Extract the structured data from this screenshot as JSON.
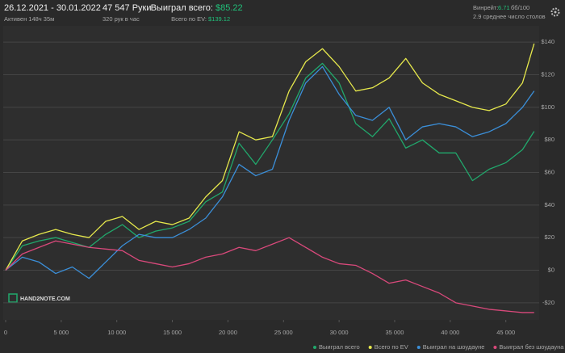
{
  "header": {
    "range": "26.12.2021 - 30.01.2022",
    "active": "Активен 148ч 35м",
    "hands": "47 547 Руки",
    "rate": "320 рук в час",
    "won_label": "Выиграл всего:",
    "won": "$85.22",
    "ev_label": "Всего по EV:",
    "ev": "$139.12",
    "winrate_label": "Винрейт:",
    "winrate": "6.71",
    "winrate_unit": "бб/100",
    "tables": "2.9 среднее число столов"
  },
  "logo": "HAND2NOTE.COM",
  "chart_data": {
    "type": "line",
    "x": [
      0,
      1500,
      3000,
      4500,
      6000,
      7500,
      9000,
      10500,
      12000,
      13500,
      15000,
      16500,
      18000,
      19500,
      21000,
      22500,
      24000,
      25500,
      27000,
      28500,
      30000,
      31500,
      33000,
      34500,
      36000,
      37500,
      39000,
      40500,
      42000,
      43500,
      45000,
      46500,
      47547
    ],
    "series": [
      {
        "name": "Выиграл всего",
        "color": "#21a86c",
        "values": [
          0,
          15,
          18,
          20,
          17,
          14,
          22,
          28,
          20,
          24,
          26,
          30,
          42,
          48,
          78,
          65,
          80,
          96,
          118,
          127,
          115,
          90,
          82,
          93,
          75,
          80,
          72,
          72,
          55,
          62,
          66,
          74,
          85.22
        ]
      },
      {
        "name": "Всего по EV",
        "color": "#e6e84c",
        "values": [
          0,
          18,
          22,
          25,
          22,
          20,
          30,
          33,
          25,
          30,
          28,
          32,
          45,
          55,
          85,
          80,
          82,
          110,
          128,
          136,
          125,
          110,
          112,
          118,
          130,
          115,
          108,
          104,
          100,
          98,
          102,
          115,
          139.12
        ]
      },
      {
        "name": "Выиграл на шоудауне",
        "color": "#3b8fd9",
        "values": [
          0,
          8,
          5,
          -2,
          2,
          -5,
          5,
          15,
          22,
          20,
          20,
          25,
          32,
          45,
          65,
          58,
          62,
          92,
          115,
          125,
          108,
          95,
          92,
          100,
          80,
          88,
          90,
          88,
          82,
          85,
          90,
          100,
          110
        ]
      },
      {
        "name": "Выиграл без шоудауна",
        "color": "#d9497b",
        "values": [
          0,
          10,
          14,
          18,
          16,
          14,
          13,
          12,
          6,
          4,
          2,
          4,
          8,
          10,
          14,
          12,
          16,
          20,
          14,
          8,
          4,
          3,
          -2,
          -8,
          -6,
          -10,
          -14,
          -20,
          -22,
          -24,
          -25,
          -26,
          -26
        ]
      }
    ],
    "xlim": [
      0,
      48000
    ],
    "ylim": [
      -29,
      151
    ],
    "xticks": [
      0,
      {
        "value": 5000,
        "label": "5 000"
      },
      {
        "value": 10000,
        "label": "10 000"
      },
      {
        "value": 15000,
        "label": "15 000"
      },
      {
        "value": 20000,
        "label": "20 000"
      },
      {
        "value": 25000,
        "label": "25 000"
      },
      {
        "value": 30000,
        "label": "30 000"
      },
      {
        "value": 35000,
        "label": "35 000"
      },
      {
        "value": 40000,
        "label": "40 000"
      },
      {
        "value": 45000,
        "label": "45 000"
      }
    ],
    "yticks": [
      {
        "value": -20,
        "label": "-$20"
      },
      {
        "value": 0,
        "label": "$0"
      },
      {
        "value": 20,
        "label": "$20"
      },
      {
        "value": 40,
        "label": "$40"
      },
      {
        "value": 60,
        "label": "$60"
      },
      {
        "value": 80,
        "label": "$80"
      },
      {
        "value": 100,
        "label": "$100"
      },
      {
        "value": 120,
        "label": "$120"
      },
      {
        "value": 140,
        "label": "$140"
      }
    ],
    "grid": true
  }
}
